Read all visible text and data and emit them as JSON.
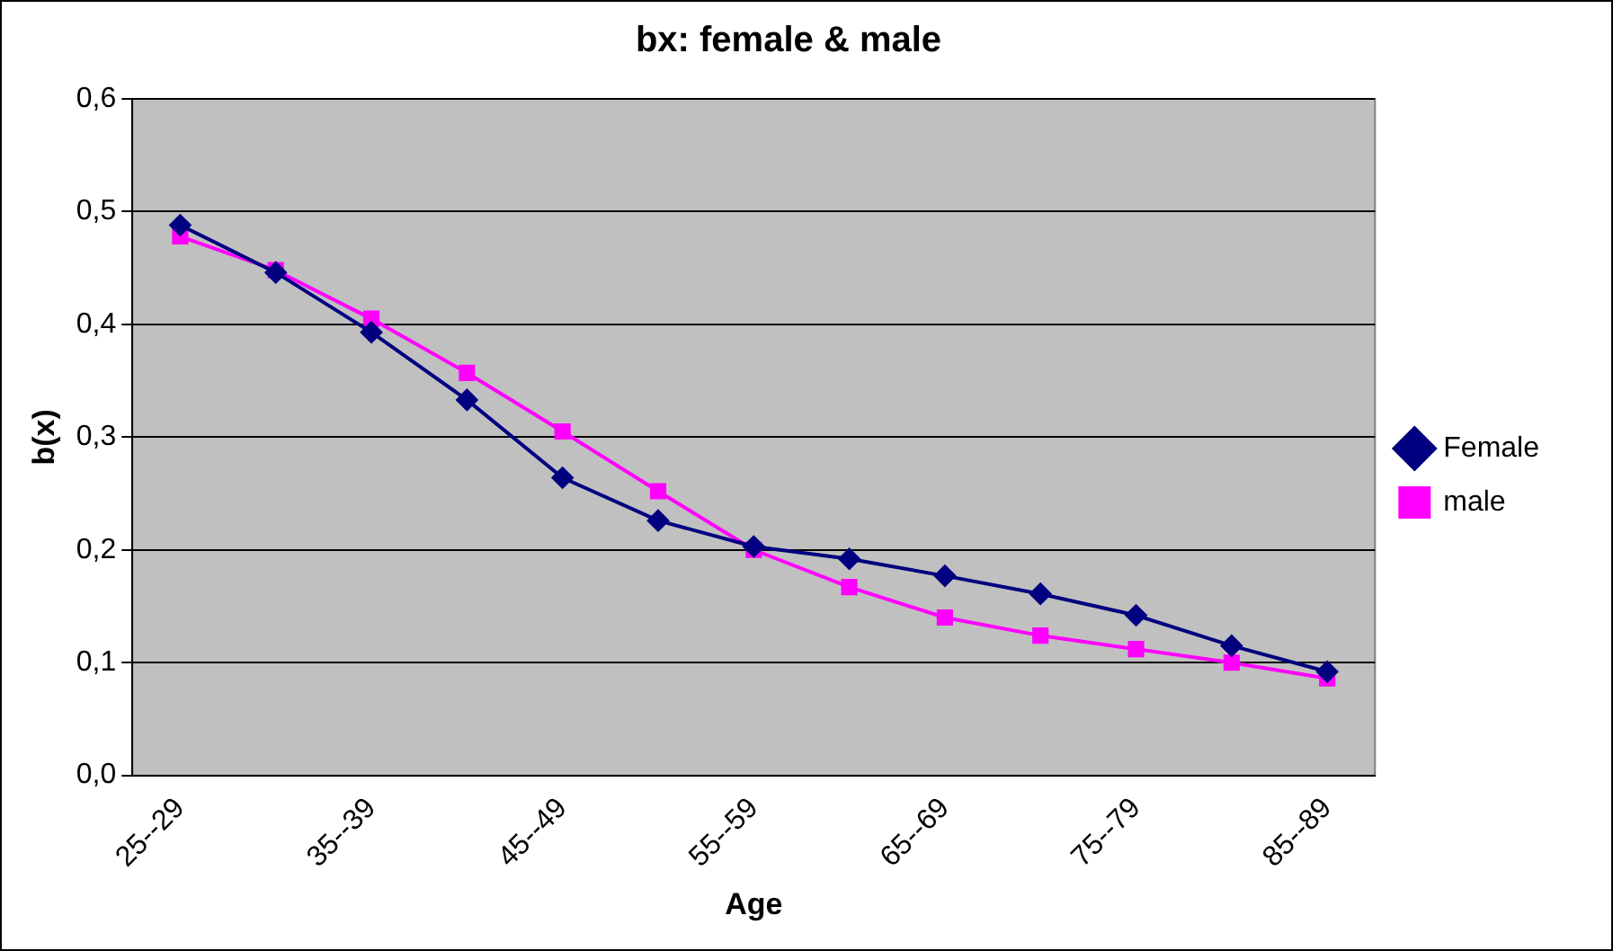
{
  "chart_data": {
    "type": "line",
    "title": "bx: female & male",
    "xlabel": "Age",
    "ylabel": "b(x)",
    "categories": [
      "25--29",
      null,
      "35--39",
      null,
      "45--49",
      null,
      "55--59",
      null,
      "65--69",
      null,
      "75--79",
      null,
      "85--89"
    ],
    "series": [
      {
        "name": "male",
        "color": "#ff00ff",
        "marker": "square",
        "values": [
          0.478,
          0.448,
          0.405,
          0.357,
          0.305,
          0.252,
          0.2,
          0.167,
          0.14,
          0.124,
          0.112,
          0.1,
          0.086
        ]
      },
      {
        "name": "Female",
        "color": "#000080",
        "marker": "diamond",
        "values": [
          0.488,
          0.446,
          0.393,
          0.333,
          0.264,
          0.226,
          0.203,
          0.192,
          0.177,
          0.161,
          0.142,
          0.115,
          0.092
        ]
      }
    ],
    "ylim": [
      0,
      0.6
    ],
    "yticks": [
      {
        "value": 0,
        "label": "0,0"
      },
      {
        "value": 0.1,
        "label": "0,1"
      },
      {
        "value": 0.2,
        "label": "0,2"
      },
      {
        "value": 0.3,
        "label": "0,3"
      },
      {
        "value": 0.4,
        "label": "0,4"
      },
      {
        "value": 0.5,
        "label": "0,5"
      },
      {
        "value": 0.6,
        "label": "0,6"
      }
    ],
    "grid": "y",
    "legend": "right",
    "line_style": "solid"
  }
}
